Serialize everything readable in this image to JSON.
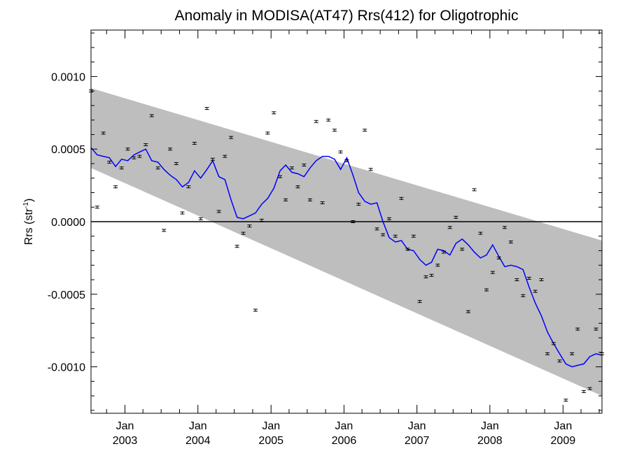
{
  "chart_data": {
    "type": "scatter",
    "title": "Anomaly in MODISA(AT47) Rrs(412) for Oligotrophic",
    "ylabel": "Rrs (str",
    "ylabel_sup": "-1",
    "ylabel_close": ")",
    "xlabel": "",
    "xlim": [
      "2002-07-15",
      "2009-07-15"
    ],
    "ylim": [
      -0.00132,
      0.00132
    ],
    "y_ticks": [
      -0.001,
      -0.0005,
      0.0,
      0.0005,
      0.001
    ],
    "y_tick_labels": [
      "-0.0010",
      "-0.0005",
      "0.0000",
      "0.0005",
      "0.0010"
    ],
    "x_ticks": [
      {
        "date": "2003-01-01",
        "month": "Jan",
        "year": "2003"
      },
      {
        "date": "2004-01-01",
        "month": "Jan",
        "year": "2004"
      },
      {
        "date": "2005-01-01",
        "month": "Jan",
        "year": "2005"
      },
      {
        "date": "2006-01-01",
        "month": "Jan",
        "year": "2006"
      },
      {
        "date": "2007-01-01",
        "month": "Jan",
        "year": "2007"
      },
      {
        "date": "2008-01-01",
        "month": "Jan",
        "year": "2008"
      },
      {
        "date": "2009-01-01",
        "month": "Jan",
        "year": "2009"
      }
    ],
    "zero_line": 0.0,
    "band": {
      "upper": [
        [
          "2002-07-15",
          0.00092
        ],
        [
          "2009-07-15",
          -0.00013
        ]
      ],
      "lower": [
        [
          "2002-07-15",
          0.00037
        ],
        [
          "2009-07-15",
          -0.0012
        ]
      ],
      "color": "#bebebe"
    },
    "series": [
      {
        "kind": "points",
        "color": "#000000",
        "x": [
          "2002-07-15",
          "2002-08-15",
          "2002-09-15",
          "2002-10-15",
          "2002-11-15",
          "2002-12-15",
          "2003-01-15",
          "2003-02-15",
          "2003-03-15",
          "2003-04-15",
          "2003-05-15",
          "2003-06-15",
          "2003-07-15",
          "2003-08-15",
          "2003-09-15",
          "2003-10-15",
          "2003-11-15",
          "2003-12-15",
          "2004-01-15",
          "2004-02-15",
          "2004-03-15",
          "2004-04-15",
          "2004-05-15",
          "2004-06-15",
          "2004-07-15",
          "2004-08-15",
          "2004-09-15",
          "2004-10-15",
          "2004-11-15",
          "2004-12-15",
          "2005-01-15",
          "2005-02-15",
          "2005-03-15",
          "2005-04-15",
          "2005-05-15",
          "2005-06-15",
          "2005-07-15",
          "2005-08-15",
          "2005-09-15",
          "2005-10-15",
          "2005-11-15",
          "2005-12-15",
          "2006-01-15",
          "2006-02-15",
          "2006-03-15",
          "2006-04-15",
          "2006-05-15",
          "2006-06-15",
          "2006-07-15",
          "2006-08-15",
          "2006-09-15",
          "2006-10-15",
          "2006-11-15",
          "2006-12-15",
          "2007-01-15",
          "2007-02-15",
          "2007-03-15",
          "2007-04-15",
          "2007-05-15",
          "2007-06-15",
          "2007-07-15",
          "2007-08-15",
          "2007-09-15",
          "2007-10-15",
          "2007-11-15",
          "2007-12-15",
          "2008-01-15",
          "2008-02-15",
          "2008-03-15",
          "2008-04-15",
          "2008-05-15",
          "2008-06-15",
          "2008-07-15",
          "2008-08-15",
          "2008-09-15",
          "2008-10-15",
          "2008-11-15",
          "2008-12-15",
          "2009-01-15",
          "2009-02-15",
          "2009-03-15",
          "2009-04-15",
          "2009-05-15",
          "2009-06-15",
          "2009-07-15"
        ],
        "y": [
          0.0009,
          0.0001,
          0.00061,
          0.00041,
          0.00024,
          0.00037,
          0.0005,
          0.00044,
          0.00045,
          0.00053,
          0.00073,
          0.00037,
          -6e-05,
          0.0005,
          0.0004,
          6e-05,
          0.00024,
          0.00054,
          2e-05,
          0.00078,
          0.00043,
          7e-05,
          0.00045,
          0.00058,
          -0.00017,
          -8e-05,
          -3e-05,
          -0.00061,
          1e-05,
          0.00061,
          0.00075,
          0.00031,
          0.00015,
          0.00037,
          0.00024,
          0.00039,
          0.00015,
          0.00069,
          0.00013,
          0.0007,
          0.00063,
          0.00048,
          0.00042,
          0.0,
          0.00012,
          0.00063,
          0.00036,
          -5e-05,
          -9e-05,
          2e-05,
          -0.0001,
          0.00016,
          -0.00019,
          -0.0001,
          -0.00055,
          -0.00038,
          -0.00037,
          -0.0003,
          -0.00021,
          -4e-05,
          3e-05,
          -0.00019,
          -0.00062,
          0.00022,
          -8e-05,
          -0.00047,
          -0.00035,
          -0.00025,
          -4e-05,
          -0.00014,
          -0.0004,
          -0.00051,
          -0.00039,
          -0.00048,
          -0.0004,
          -0.00091,
          -0.00084,
          -0.00096,
          -0.00123,
          -0.00091,
          -0.00074,
          -0.00117,
          -0.00115,
          -0.00074,
          -0.00091
        ]
      },
      {
        "kind": "line",
        "color": "#0000ff",
        "x": [
          "2002-07-15",
          "2002-08-15",
          "2002-09-15",
          "2002-10-15",
          "2002-11-15",
          "2002-12-15",
          "2003-01-15",
          "2003-02-15",
          "2003-03-15",
          "2003-04-15",
          "2003-05-15",
          "2003-06-15",
          "2003-07-15",
          "2003-08-15",
          "2003-09-15",
          "2003-10-15",
          "2003-11-15",
          "2003-12-15",
          "2004-01-15",
          "2004-02-15",
          "2004-03-15",
          "2004-04-15",
          "2004-05-15",
          "2004-06-15",
          "2004-07-15",
          "2004-08-15",
          "2004-09-15",
          "2004-10-15",
          "2004-11-15",
          "2004-12-15",
          "2005-01-15",
          "2005-02-15",
          "2005-03-15",
          "2005-04-15",
          "2005-05-15",
          "2005-06-15",
          "2005-07-15",
          "2005-08-15",
          "2005-09-15",
          "2005-10-15",
          "2005-11-15",
          "2005-12-15",
          "2006-01-15",
          "2006-02-15",
          "2006-03-15",
          "2006-04-15",
          "2006-05-15",
          "2006-06-15",
          "2006-07-15",
          "2006-08-15",
          "2006-09-15",
          "2006-10-15",
          "2006-11-15",
          "2006-12-15",
          "2007-01-15",
          "2007-02-15",
          "2007-03-15",
          "2007-04-15",
          "2007-05-15",
          "2007-06-15",
          "2007-07-15",
          "2007-08-15",
          "2007-09-15",
          "2007-10-15",
          "2007-11-15",
          "2007-12-15",
          "2008-01-15",
          "2008-02-15",
          "2008-03-15",
          "2008-04-15",
          "2008-05-15",
          "2008-06-15",
          "2008-07-15",
          "2008-08-15",
          "2008-09-15",
          "2008-10-15",
          "2008-11-15",
          "2008-12-15",
          "2009-01-15",
          "2009-02-15",
          "2009-03-15",
          "2009-04-15",
          "2009-05-15",
          "2009-06-15",
          "2009-07-15"
        ],
        "y": [
          0.00051,
          0.00046,
          0.00045,
          0.00044,
          0.00038,
          0.00043,
          0.00042,
          0.00046,
          0.00048,
          0.0005,
          0.00042,
          0.00041,
          0.00036,
          0.00032,
          0.00029,
          0.00024,
          0.00027,
          0.00035,
          0.0003,
          0.00036,
          0.00042,
          0.00031,
          0.00029,
          0.00015,
          3e-05,
          2e-05,
          4e-05,
          6e-05,
          0.00012,
          0.00016,
          0.00023,
          0.00035,
          0.00039,
          0.00034,
          0.00033,
          0.00031,
          0.00037,
          0.00042,
          0.00045,
          0.00045,
          0.00043,
          0.00036,
          0.00044,
          0.00032,
          0.0002,
          0.00014,
          0.00012,
          0.00013,
          0.0,
          -0.00011,
          -0.00014,
          -0.00013,
          -0.00019,
          -0.0002,
          -0.00026,
          -0.0003,
          -0.00028,
          -0.00019,
          -0.0002,
          -0.00023,
          -0.00015,
          -0.00012,
          -0.00016,
          -0.00021,
          -0.00025,
          -0.00023,
          -0.00016,
          -0.00024,
          -0.00031,
          -0.0003,
          -0.00031,
          -0.00033,
          -0.00045,
          -0.00056,
          -0.00065,
          -0.00076,
          -0.00084,
          -0.00091,
          -0.00098,
          -0.001,
          -0.00099,
          -0.00098,
          -0.00093,
          -0.00091,
          -0.00092
        ]
      }
    ]
  }
}
